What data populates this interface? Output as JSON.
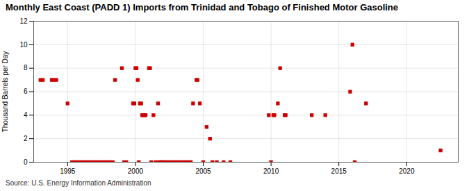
{
  "chart_data": {
    "type": "scatter",
    "title": "Monthly East Coast (PADD 1) Imports from Trinidad and Tobago of Finished Motor Gasoline",
    "ylabel": "Thousand Barrels per Day",
    "source": "Source: U.S. Energy Information Administration",
    "color": "#cc0000",
    "marker": "square",
    "grid": true,
    "xlim": [
      1992.5,
      2023.8
    ],
    "xticks": [
      1995,
      2000,
      2005,
      2010,
      2015,
      2020
    ],
    "ylim": [
      0,
      12
    ],
    "yticks": [
      0,
      2,
      4,
      6,
      8,
      10,
      12
    ],
    "x": [
      1993.0,
      1993.17,
      1993.83,
      1994.0,
      1994.17,
      1995.0,
      1995.33,
      1995.5,
      1995.67,
      1995.83,
      1996.0,
      1996.17,
      1996.33,
      1996.5,
      1996.67,
      1996.83,
      1997.0,
      1997.17,
      1997.33,
      1997.5,
      1997.67,
      1997.83,
      1998.0,
      1998.17,
      1998.33,
      1998.5,
      1999.0,
      1999.17,
      1999.33,
      1999.83,
      1999.92,
      2000.0,
      2000.08,
      2000.17,
      2000.25,
      2000.33,
      2000.42,
      2000.5,
      2000.58,
      2000.67,
      2000.75,
      2001.0,
      2001.08,
      2001.17,
      2001.33,
      2001.5,
      2001.67,
      2001.75,
      2001.83,
      2001.92,
      2002.0,
      2002.08,
      2002.17,
      2002.33,
      2002.5,
      2002.67,
      2002.83,
      2003.0,
      2003.17,
      2003.33,
      2003.5,
      2003.67,
      2003.83,
      2004.0,
      2004.08,
      2004.25,
      2004.5,
      2004.58,
      2004.75,
      2005.0,
      2005.25,
      2005.5,
      2005.67,
      2006.0,
      2006.5,
      2007.0,
      2009.83,
      2010.0,
      2010.17,
      2010.25,
      2010.5,
      2010.67,
      2011.0,
      2011.08,
      2013.0,
      2014.0,
      2015.83,
      2016.0,
      2016.17,
      2017.0,
      2022.5
    ],
    "values": [
      7,
      7,
      7,
      7,
      7,
      5,
      0,
      0,
      0,
      0,
      0,
      0,
      0,
      0,
      0,
      0,
      0,
      0,
      0,
      0,
      0,
      0,
      0,
      0,
      0,
      7,
      8,
      0,
      0,
      5,
      5,
      8,
      8,
      7,
      0,
      5,
      5,
      4,
      4,
      4,
      4,
      8,
      8,
      0,
      4,
      0,
      5,
      0,
      0,
      0,
      0,
      0,
      0,
      0,
      0,
      0,
      0,
      0,
      0,
      0,
      0,
      0,
      0,
      0,
      0,
      5,
      7,
      7,
      5,
      0,
      3,
      2,
      0,
      0,
      0,
      0,
      4,
      0,
      4,
      4,
      5,
      8,
      4,
      4,
      4,
      4,
      6,
      10,
      0,
      5,
      1
    ]
  }
}
